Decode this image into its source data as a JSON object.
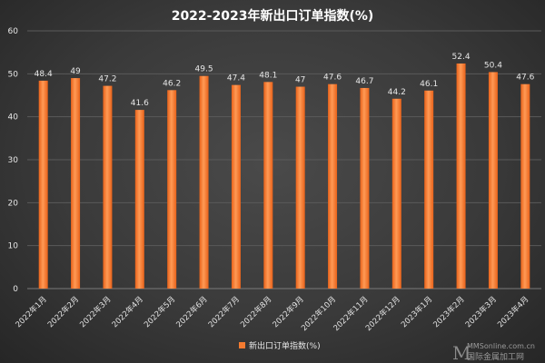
{
  "chart_data": {
    "type": "bar",
    "title": "2022-2023年新出口订单指数(%)",
    "categories": [
      "2022年1月",
      "2022年2月",
      "2022年3月",
      "2022年4月",
      "2022年5月",
      "2022年6月",
      "2022年7月",
      "2022年8月",
      "2022年9月",
      "2022年10月",
      "2022年11月",
      "2022年12月",
      "2023年1月",
      "2023年2月",
      "2023年3月",
      "2023年4月"
    ],
    "series": [
      {
        "name": "新出口订单指数(%)",
        "values": [
          48.4,
          49,
          47.2,
          41.6,
          46.2,
          49.5,
          47.4,
          48.1,
          47,
          47.6,
          46.7,
          44.2,
          46.1,
          52.4,
          50.4,
          47.6
        ]
      }
    ],
    "data_labels": [
      "48.4",
      "49",
      "47.2",
      "41.6",
      "46.2",
      "49.5",
      "47.4",
      "48.1",
      "47",
      "47.6",
      "46.7",
      "44.2",
      "46.1",
      "52.4",
      "50.4",
      "47.6"
    ],
    "ylim": [
      0,
      60
    ],
    "yticks": [
      0,
      10,
      20,
      30,
      40,
      50,
      60
    ],
    "grid": true,
    "legend_position": "bottom-center",
    "bar_color": "#f47b30"
  },
  "watermark": {
    "mark": "M",
    "line1": "MMSonline.com.cn",
    "line2": "国际金属加工网"
  }
}
